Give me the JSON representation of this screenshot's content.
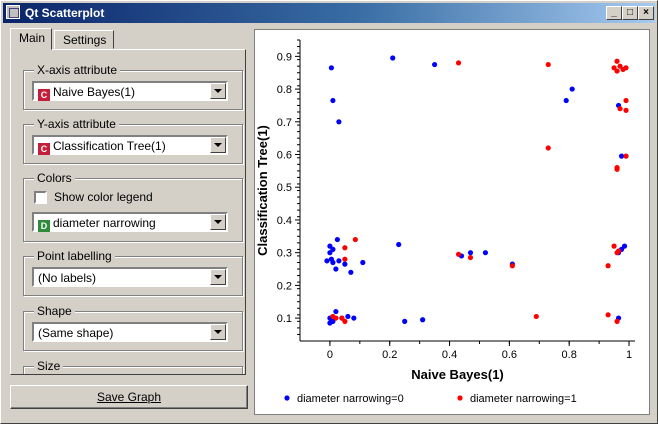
{
  "window": {
    "title": "Qt Scatterplot"
  },
  "tabs": [
    {
      "label": "Main"
    },
    {
      "label": "Settings"
    }
  ],
  "groups": {
    "x_axis": {
      "legend": "X-axis attribute",
      "badge": "C",
      "badge_color": "#c41e3a",
      "value": "Naive Bayes(1)"
    },
    "y_axis": {
      "legend": "Y-axis attribute",
      "badge": "C",
      "badge_color": "#c41e3a",
      "value": "Classification Tree(1)"
    },
    "colors": {
      "legend": "Colors",
      "checkbox_label": "Show color legend",
      "checked": false,
      "badge": "D",
      "badge_color": "#2e8b3a",
      "value": "diameter narrowing"
    },
    "labelling": {
      "legend": "Point labelling",
      "value": "(No labels)"
    },
    "shape": {
      "legend": "Shape",
      "value": "(Same shape)"
    },
    "size": {
      "legend": "Size"
    }
  },
  "save_button": {
    "label": "Save Graph"
  },
  "chart_data": {
    "type": "scatter",
    "xlabel": "Naive Bayes(1)",
    "ylabel": "Classification Tree(1)",
    "xlim": [
      -0.1,
      1.02
    ],
    "ylim": [
      0.03,
      0.95
    ],
    "xticks": [
      "0",
      "0.2",
      "0.4",
      "0.6",
      "0.8",
      "1"
    ],
    "yticks": [
      "0.1",
      "0.2",
      "0.3",
      "0.4",
      "0.5",
      "0.6",
      "0.7",
      "0.8",
      "0.9"
    ],
    "grid": false,
    "legend_position": "bottom",
    "series": [
      {
        "name": "diameter narrowing=0",
        "color": "#0000ff",
        "points": [
          [
            0.005,
            0.865
          ],
          [
            0.01,
            0.765
          ],
          [
            0.03,
            0.7
          ],
          [
            0.21,
            0.895
          ],
          [
            0.35,
            0.875
          ],
          [
            0.79,
            0.765
          ],
          [
            0.81,
            0.8
          ],
          [
            0.965,
            0.75
          ],
          [
            0.975,
            0.595
          ],
          [
            0.0,
            0.32
          ],
          [
            0.01,
            0.31
          ],
          [
            0.025,
            0.34
          ],
          [
            0.0,
            0.3
          ],
          [
            -0.01,
            0.275
          ],
          [
            0.005,
            0.28
          ],
          [
            0.01,
            0.27
          ],
          [
            0.03,
            0.275
          ],
          [
            0.05,
            0.265
          ],
          [
            0.02,
            0.25
          ],
          [
            0.07,
            0.24
          ],
          [
            0.11,
            0.27
          ],
          [
            0.23,
            0.325
          ],
          [
            0.44,
            0.29
          ],
          [
            0.47,
            0.3
          ],
          [
            0.52,
            0.3
          ],
          [
            0.61,
            0.265
          ],
          [
            0.985,
            0.32
          ],
          [
            0.975,
            0.31
          ],
          [
            0.965,
            0.3
          ],
          [
            0.0,
            0.1
          ],
          [
            0.01,
            0.09
          ],
          [
            0.02,
            0.12
          ],
          [
            0.04,
            0.1
          ],
          [
            0.06,
            0.105
          ],
          [
            0.08,
            0.1
          ],
          [
            0.0,
            0.085
          ],
          [
            0.25,
            0.09
          ],
          [
            0.31,
            0.095
          ],
          [
            0.965,
            0.1
          ]
        ]
      },
      {
        "name": "diameter narrowing=1",
        "color": "#ff0000",
        "points": [
          [
            0.43,
            0.88
          ],
          [
            0.73,
            0.875
          ],
          [
            0.96,
            0.885
          ],
          [
            0.97,
            0.87
          ],
          [
            0.98,
            0.86
          ],
          [
            0.99,
            0.865
          ],
          [
            0.95,
            0.865
          ],
          [
            0.96,
            0.855
          ],
          [
            0.99,
            0.765
          ],
          [
            0.97,
            0.74
          ],
          [
            0.99,
            0.735
          ],
          [
            0.73,
            0.62
          ],
          [
            0.99,
            0.595
          ],
          [
            0.96,
            0.56
          ],
          [
            0.96,
            0.555
          ],
          [
            0.085,
            0.34
          ],
          [
            0.05,
            0.315
          ],
          [
            0.05,
            0.28
          ],
          [
            0.43,
            0.295
          ],
          [
            0.47,
            0.285
          ],
          [
            0.61,
            0.26
          ],
          [
            0.95,
            0.32
          ],
          [
            0.96,
            0.3
          ],
          [
            0.965,
            0.305
          ],
          [
            0.93,
            0.26
          ],
          [
            0.01,
            0.105
          ],
          [
            0.02,
            0.1
          ],
          [
            0.04,
            0.1
          ],
          [
            0.05,
            0.09
          ],
          [
            0.69,
            0.105
          ],
          [
            0.93,
            0.11
          ],
          [
            0.96,
            0.09
          ]
        ]
      }
    ]
  }
}
